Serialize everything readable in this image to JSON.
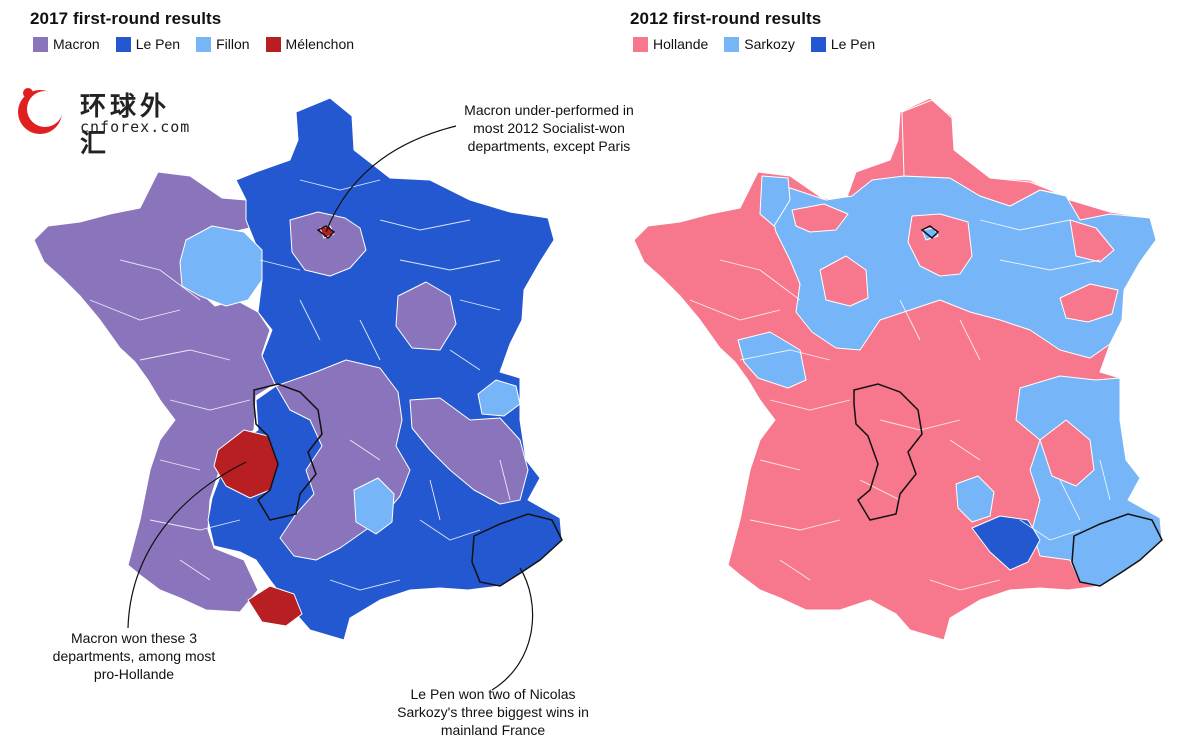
{
  "left_panel": {
    "title": "2017 first-round results",
    "legend": [
      {
        "label": "Macron",
        "color": "#8a74bc"
      },
      {
        "label": "Le Pen",
        "color": "#2458d0"
      },
      {
        "label": "Fillon",
        "color": "#76b5f7"
      },
      {
        "label": "Mélenchon",
        "color": "#b81f22"
      }
    ]
  },
  "right_panel": {
    "title": "2012 first-round results",
    "legend": [
      {
        "label": "Hollande",
        "color": "#f7778d"
      },
      {
        "label": "Sarkozy",
        "color": "#76b5f7"
      },
      {
        "label": "Le Pen",
        "color": "#2458d0"
      }
    ]
  },
  "logo": {
    "chinese": "环球外汇",
    "url": "cnforex.com"
  },
  "annotations": {
    "macron_underperformed": [
      "Macron under-performed in",
      "most 2012 Socialist-won",
      "departments, except Paris"
    ],
    "macron_won_three": [
      "Macron won these 3",
      "departments, among most",
      "pro-Hollande"
    ],
    "lepen_won_two": [
      "Le Pen won two of Nicolas",
      "Sarkozy's three biggest wins in",
      "mainland France"
    ]
  }
}
